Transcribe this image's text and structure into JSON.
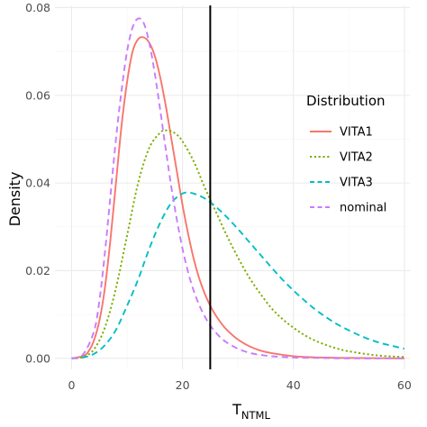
{
  "chart_data": {
    "type": "line",
    "xlabel": "T",
    "xlabel_subscript": "NTML",
    "ylabel": "Density",
    "xlim": [
      -3,
      61
    ],
    "ylim": [
      -0.0025,
      0.0805
    ],
    "x_ticks": [
      0,
      20,
      40,
      60
    ],
    "x_tick_labels": [
      "0",
      "20",
      "40",
      "60"
    ],
    "y_ticks": [
      0,
      0.02,
      0.04,
      0.06,
      0.08
    ],
    "y_tick_labels": [
      "0.00",
      "0.02",
      "0.04",
      "0.06",
      "0.08"
    ],
    "grid": true,
    "legend": {
      "title": "Distribution",
      "position": "right"
    },
    "vline": {
      "x": 25,
      "color": "#000000"
    },
    "series": [
      {
        "name": "VITA1",
        "color": "#F8766D",
        "dash": "solid",
        "x": [
          0,
          2,
          3,
          4,
          5,
          6,
          7,
          8,
          9,
          10,
          11,
          12,
          13,
          14,
          15,
          16,
          17,
          18,
          19,
          20,
          21,
          22,
          23,
          24,
          25,
          26,
          27,
          28,
          30,
          32,
          34,
          36,
          40,
          45,
          50,
          60
        ],
        "y": [
          0,
          0.0005,
          0.0015,
          0.004,
          0.0085,
          0.016,
          0.027,
          0.04,
          0.053,
          0.063,
          0.07,
          0.0728,
          0.0732,
          0.072,
          0.069,
          0.064,
          0.0575,
          0.05,
          0.0425,
          0.035,
          0.0285,
          0.0228,
          0.0183,
          0.0148,
          0.012,
          0.0098,
          0.008,
          0.0065,
          0.0043,
          0.0028,
          0.0018,
          0.0012,
          0.0005,
          0.0002,
          0.0001,
          0
        ]
      },
      {
        "name": "VITA2",
        "color": "#7CAE00",
        "dash": "dotted",
        "x": [
          0,
          2,
          4,
          6,
          8,
          10,
          12,
          14,
          16,
          17,
          18,
          19,
          20,
          22,
          24,
          26,
          28,
          30,
          32,
          34,
          36,
          38,
          40,
          42,
          44,
          46,
          48,
          50,
          55,
          60
        ],
        "y": [
          0,
          0.0003,
          0.002,
          0.007,
          0.016,
          0.028,
          0.04,
          0.048,
          0.0515,
          0.052,
          0.0518,
          0.051,
          0.0495,
          0.045,
          0.039,
          0.0335,
          0.028,
          0.023,
          0.0185,
          0.0148,
          0.0115,
          0.009,
          0.007,
          0.0053,
          0.004,
          0.003,
          0.0022,
          0.0016,
          0.0007,
          0.0003
        ]
      },
      {
        "name": "VITA3",
        "color": "#00BFC4",
        "dash": "dashed",
        "x": [
          0,
          2,
          4,
          6,
          8,
          10,
          12,
          14,
          16,
          18,
          20,
          21,
          22,
          24,
          26,
          28,
          30,
          32,
          34,
          36,
          38,
          40,
          42,
          44,
          46,
          48,
          50,
          52,
          54,
          56,
          58,
          60
        ],
        "y": [
          0,
          0.0002,
          0.001,
          0.003,
          0.0065,
          0.012,
          0.018,
          0.025,
          0.031,
          0.0355,
          0.0376,
          0.0378,
          0.0376,
          0.0365,
          0.0346,
          0.0322,
          0.0295,
          0.0266,
          0.0237,
          0.0208,
          0.018,
          0.0155,
          0.0132,
          0.0111,
          0.0093,
          0.0077,
          0.0064,
          0.0052,
          0.0042,
          0.0034,
          0.0028,
          0.0022
        ]
      },
      {
        "name": "nominal",
        "color": "#C77CFF",
        "dash": "dashed",
        "x": [
          0,
          2,
          4,
          5,
          6,
          7,
          8,
          9,
          10,
          11,
          12,
          13,
          14,
          15,
          16,
          17,
          18,
          19,
          20,
          21,
          22,
          23,
          24,
          25,
          26,
          27,
          28,
          30,
          32,
          34,
          36,
          40,
          45,
          50,
          60
        ],
        "y": [
          0,
          0.0008,
          0.006,
          0.013,
          0.024,
          0.037,
          0.05,
          0.061,
          0.07,
          0.0755,
          0.0775,
          0.0765,
          0.072,
          0.065,
          0.0565,
          0.0475,
          0.039,
          0.0315,
          0.025,
          0.0197,
          0.0155,
          0.0122,
          0.0096,
          0.0075,
          0.0059,
          0.0046,
          0.0036,
          0.0022,
          0.0013,
          0.0008,
          0.0005,
          0.0002,
          0.0001,
          0,
          0
        ]
      }
    ]
  }
}
